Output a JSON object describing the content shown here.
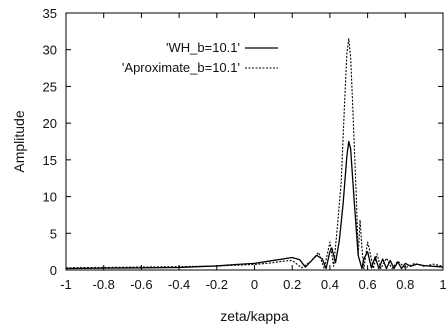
{
  "chart_data": {
    "type": "line",
    "title": "",
    "xlabel": "zeta/kappa",
    "ylabel": "Amplitude",
    "xlim": [
      -1,
      1
    ],
    "ylim": [
      0,
      35
    ],
    "xticks": [
      -1,
      -0.8,
      -0.6,
      -0.4,
      -0.2,
      0,
      0.2,
      0.4,
      0.6,
      0.8,
      1
    ],
    "yticks": [
      0,
      5,
      10,
      15,
      20,
      25,
      30,
      35
    ],
    "grid": false,
    "legend": "top-right",
    "series": [
      {
        "name": "'WH_b=10.1'",
        "line_style": "solid",
        "color": "#000000",
        "x": [
          -1,
          -0.8,
          -0.6,
          -0.4,
          -0.3,
          -0.2,
          -0.1,
          0,
          0.1,
          0.15,
          0.2,
          0.24,
          0.27,
          0.3,
          0.33,
          0.36,
          0.38,
          0.4,
          0.41,
          0.43,
          0.45,
          0.47,
          0.49,
          0.5,
          0.51,
          0.53,
          0.55,
          0.57,
          0.58,
          0.6,
          0.62,
          0.64,
          0.66,
          0.68,
          0.7,
          0.72,
          0.74,
          0.76,
          0.78,
          0.8,
          0.83,
          0.86,
          0.9,
          0.95,
          1
        ],
        "y": [
          0.2,
          0.25,
          0.3,
          0.35,
          0.45,
          0.55,
          0.75,
          0.9,
          1.3,
          1.5,
          1.7,
          1.4,
          0.4,
          1.2,
          2.0,
          1.5,
          0.2,
          2.5,
          3.0,
          1.0,
          4.0,
          9.0,
          15.5,
          17.5,
          16.5,
          9.0,
          2.0,
          0.2,
          1.5,
          2.5,
          0.3,
          1.8,
          0.2,
          1.5,
          0.2,
          1.3,
          0.2,
          1.1,
          0.2,
          0.9,
          0.5,
          0.8,
          0.6,
          0.5,
          0.4
        ]
      },
      {
        "name": "'Aproximate_b=10.1'",
        "line_style": "dashed",
        "color": "#000000",
        "x": [
          -1,
          -0.8,
          -0.6,
          -0.4,
          -0.2,
          0,
          0.1,
          0.15,
          0.2,
          0.25,
          0.3,
          0.34,
          0.37,
          0.4,
          0.42,
          0.44,
          0.46,
          0.48,
          0.49,
          0.5,
          0.51,
          0.52,
          0.54,
          0.55,
          0.56,
          0.57,
          0.58,
          0.6,
          0.61,
          0.63,
          0.65,
          0.67,
          0.7,
          0.73,
          0.76,
          0.8,
          0.85,
          0.9,
          0.95,
          1
        ],
        "y": [
          0.3,
          0.35,
          0.4,
          0.45,
          0.55,
          0.75,
          1.0,
          1.2,
          1.3,
          0.3,
          1.2,
          2.4,
          0.2,
          3.8,
          0.5,
          6.0,
          12.0,
          24.0,
          29.5,
          31.5,
          29.0,
          23.0,
          10.0,
          2.0,
          6.8,
          3.0,
          0.2,
          3.8,
          2.8,
          0.2,
          2.2,
          0.2,
          1.6,
          0.2,
          1.2,
          0.3,
          0.9,
          0.5,
          0.8,
          0.5
        ]
      }
    ]
  }
}
